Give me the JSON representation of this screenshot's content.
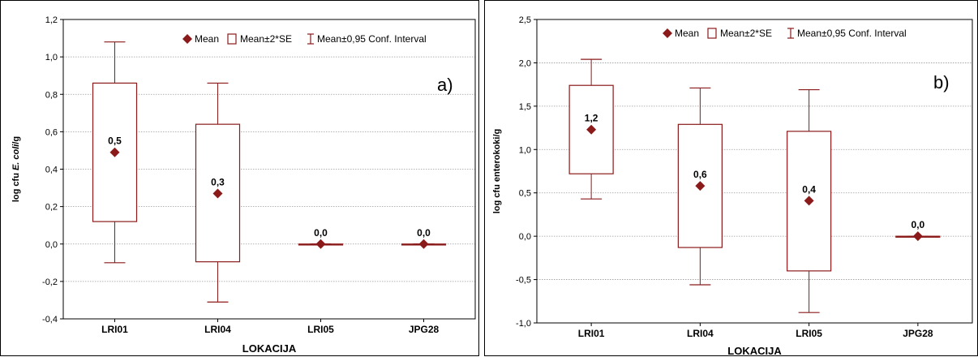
{
  "colors": {
    "series": "#8b1a1a",
    "grid": "#9a9a9a",
    "axis": "#000000"
  },
  "legend": {
    "mean": "Mean",
    "box": "Mean±2*SE",
    "whisker": "Mean±0,95 Conf. Interval"
  },
  "chart_data": [
    {
      "type": "box",
      "panel_label": "a)",
      "xlabel": "LOKACIJA",
      "ylabel_prefix": "log cfu ",
      "ylabel_italic": "E. coli",
      "ylabel_suffix": "/g",
      "ylim": [
        -0.4,
        1.2
      ],
      "yticks": [
        -0.4,
        -0.2,
        0.0,
        0.2,
        0.4,
        0.6,
        0.8,
        1.0,
        1.2
      ],
      "ytick_labels": [
        "-0,4",
        "-0,2",
        "0,0",
        "0,2",
        "0,4",
        "0,6",
        "0,8",
        "1,0",
        "1,2"
      ],
      "grid": true,
      "legend_position": "top",
      "categories": [
        "LRI01",
        "LRI04",
        "LRI05",
        "JPG28"
      ],
      "mean": [
        0.49,
        0.27,
        0.0,
        0.0
      ],
      "mean_labels": [
        "0,5",
        "0,3",
        "0,0",
        "0,0"
      ],
      "box_low": [
        0.12,
        -0.095,
        0.0,
        0.0
      ],
      "box_high": [
        0.86,
        0.64,
        0.0,
        0.0
      ],
      "whisker_low": [
        -0.1,
        -0.31,
        0.0,
        0.0
      ],
      "whisker_high": [
        1.08,
        0.86,
        0.0,
        0.0
      ]
    },
    {
      "type": "box",
      "panel_label": "b)",
      "xlabel": "LOKACIJA",
      "ylabel_prefix": "log cfu enterokoki/g",
      "ylabel_italic": "",
      "ylabel_suffix": "",
      "ylim": [
        -1.0,
        2.5
      ],
      "yticks": [
        -1.0,
        -0.5,
        0.0,
        0.5,
        1.0,
        1.5,
        2.0,
        2.5
      ],
      "ytick_labels": [
        "-1,0",
        "-0,5",
        "0,0",
        "0,5",
        "1,0",
        "1,5",
        "2,0",
        "2,5"
      ],
      "grid": true,
      "legend_position": "top",
      "categories": [
        "LRI01",
        "LRI04",
        "LRI05",
        "JPG28"
      ],
      "mean": [
        1.23,
        0.58,
        0.41,
        0.0
      ],
      "mean_labels": [
        "1,2",
        "0,6",
        "0,4",
        "0,0"
      ],
      "box_low": [
        0.72,
        -0.13,
        -0.4,
        0.0
      ],
      "box_high": [
        1.74,
        1.29,
        1.21,
        0.0
      ],
      "whisker_low": [
        0.43,
        -0.56,
        -0.88,
        0.0
      ],
      "whisker_high": [
        2.04,
        1.71,
        1.69,
        0.0
      ]
    }
  ]
}
